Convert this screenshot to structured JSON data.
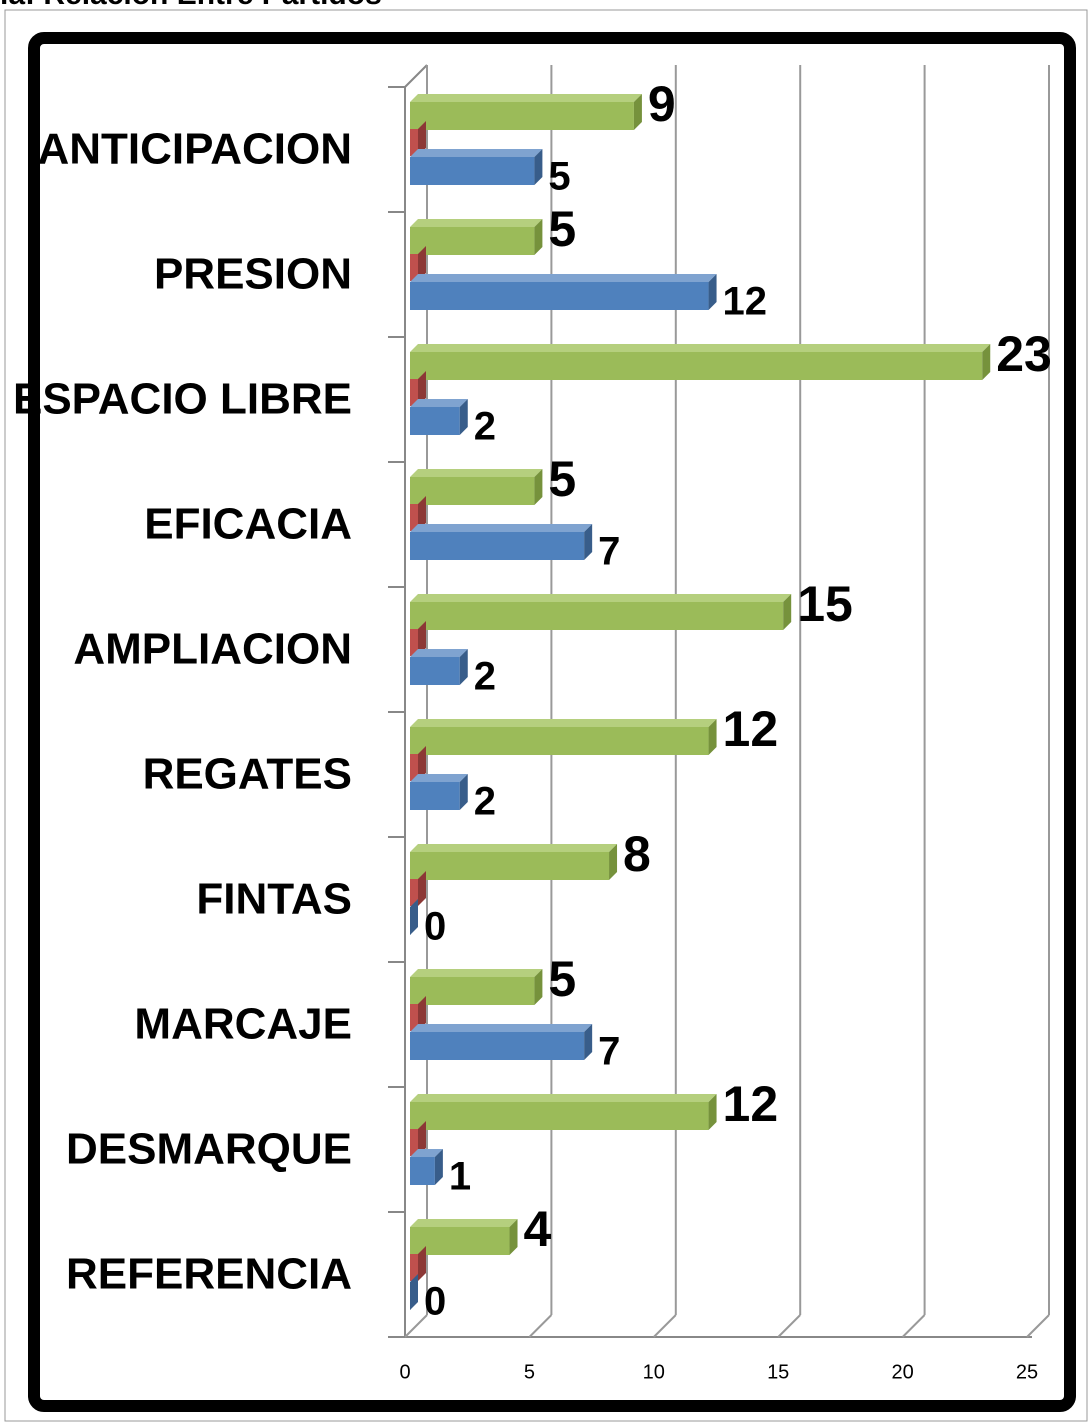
{
  "chart_data": {
    "type": "bar",
    "orientation": "horizontal",
    "title": "la: Relación Entre Partidos",
    "categories": [
      "ANTICIPACION",
      "PRESION",
      "ESPACIO LIBRE",
      "EFICACIA",
      "AMPLIACION",
      "REGATES",
      "FINTAS",
      "MARCAJE",
      "DESMARQUE",
      "REFERENCIA"
    ],
    "series": [
      {
        "color": "#9bbb59",
        "values": [
          9,
          5,
          23,
          5,
          15,
          12,
          8,
          5,
          12,
          4
        ]
      },
      {
        "color": "#c0504d",
        "values": [
          0,
          0,
          0,
          0,
          0,
          0,
          0,
          0,
          0,
          0
        ]
      },
      {
        "color": "#4f81bd",
        "values": [
          5,
          12,
          2,
          7,
          2,
          2,
          0,
          7,
          1,
          0
        ]
      }
    ],
    "xlim": [
      0,
      25
    ],
    "xticks": [
      0,
      5,
      10,
      15,
      20,
      25
    ],
    "grid": true
  }
}
